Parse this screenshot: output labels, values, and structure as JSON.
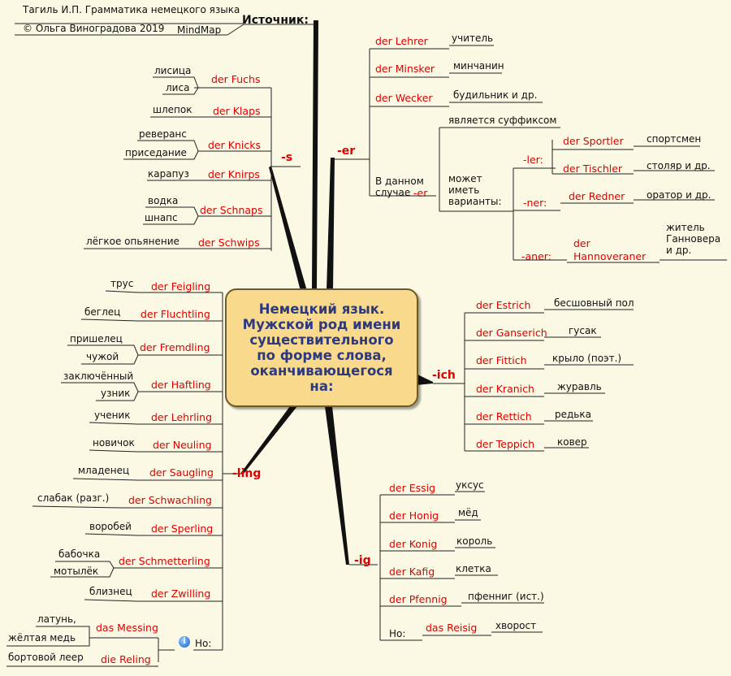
{
  "central_topic": "Немецкий язык.\nМужской род имени\nсуществительного\nпо форме слова,\nоканчивающегося\nна:",
  "source": {
    "label": "Источник:",
    "book": "Тагиль И.П. Грамматика немецкого языка",
    "author": "© Ольга Виноградова 2019",
    "tool": "MindMap"
  },
  "s": {
    "label": "-s",
    "items": [
      {
        "word": "der Fuchs",
        "t1": "лисица",
        "t2": "лиса"
      },
      {
        "word": "der Klaps",
        "t1": "шлепок"
      },
      {
        "word": "der Knicks",
        "t1": "реверанс",
        "t2": "приседание"
      },
      {
        "word": "der Knirps",
        "t1": "карапуз"
      },
      {
        "word": "der Schnaps",
        "t1": "водка",
        "t2": "шнапс"
      },
      {
        "word": "der Schwips",
        "t1": "лёгкое опьянение"
      }
    ]
  },
  "er": {
    "label": "-er",
    "items": [
      {
        "word": "der Lehrer",
        "t": "учитель"
      },
      {
        "word": "der Minsker",
        "t": "минчанин"
      },
      {
        "word": "der Wecker",
        "t": "будильник и др."
      }
    ],
    "case_text": "В данном\nслучае",
    "case_suffix": "-er",
    "is_suffix": "является суффиксом",
    "variants_text": "может\nиметь\nварианты:",
    "ler": {
      "label": "-ler:",
      "words": [
        {
          "word": "der Sportler",
          "t": "спортсмен"
        },
        {
          "word": "der Tischler",
          "t": "столяр и др."
        }
      ]
    },
    "ner": {
      "label": "-ner:",
      "word": "der Redner",
      "t": "оратор и др."
    },
    "aner": {
      "label": "-aner:",
      "word": "der\nHannoveraner",
      "t": "житель\nГанновера\nи др."
    }
  },
  "ich": {
    "label": "-ich",
    "items": [
      {
        "word": "der Estrich",
        "t": "бесшовный пол"
      },
      {
        "word": "der Ganserich",
        "t": "гусак"
      },
      {
        "word": "der Fittich",
        "t": "крыло (поэт.)"
      },
      {
        "word": "der Kranich",
        "t": "журавль"
      },
      {
        "word": "der Rettich",
        "t": "редька"
      },
      {
        "word": "der Teppich",
        "t": "ковер"
      }
    ]
  },
  "ig": {
    "label": "-ig",
    "items": [
      {
        "word": "der Essig",
        "t": "уксус"
      },
      {
        "word": "der Honig",
        "t": "мёд"
      },
      {
        "word": "der Konig",
        "t": "король"
      },
      {
        "word": "der Kafig",
        "t": "клетка"
      },
      {
        "word": "der Pfennig",
        "t": "пфенниг (ист.)"
      }
    ],
    "no": "Но:",
    "exception": {
      "word": "das Reisig",
      "t": "хворост"
    }
  },
  "ling": {
    "label": "-ling",
    "items": [
      {
        "word": "der Feigling",
        "t1": "трус"
      },
      {
        "word": "der Fluchtling",
        "t1": "беглец"
      },
      {
        "word": "der Fremdling",
        "t1": "пришелец",
        "t2": "чужой"
      },
      {
        "word": "der Haftling",
        "t1": "заключённый",
        "t2": "узник"
      },
      {
        "word": "der Lehrling",
        "t1": "ученик"
      },
      {
        "word": "der Neuling",
        "t1": "новичок"
      },
      {
        "word": "der Saugling",
        "t1": "младенец"
      },
      {
        "word": "der Schwachling",
        "t1": "слабак (разг.)"
      },
      {
        "word": "der Sperling",
        "t1": "воробей"
      },
      {
        "word": "der Schmetterling",
        "t1": "бабочка",
        "t2": "мотылёк"
      },
      {
        "word": "der Zwilling",
        "t1": "близнец"
      }
    ],
    "no": "Но:",
    "exceptions": [
      {
        "word": "das Messing",
        "t1": "латунь,",
        "t2": "жёлтая медь"
      },
      {
        "word": "die Reling",
        "t1": "бортовой леер"
      }
    ]
  },
  "colors": {
    "background": "#fbf8e4",
    "word": "#e00000",
    "branch": "#111111",
    "topic_fill": "#f9da8c",
    "topic_text": "#2d3a80"
  },
  "icons": {
    "info": "info-icon"
  }
}
